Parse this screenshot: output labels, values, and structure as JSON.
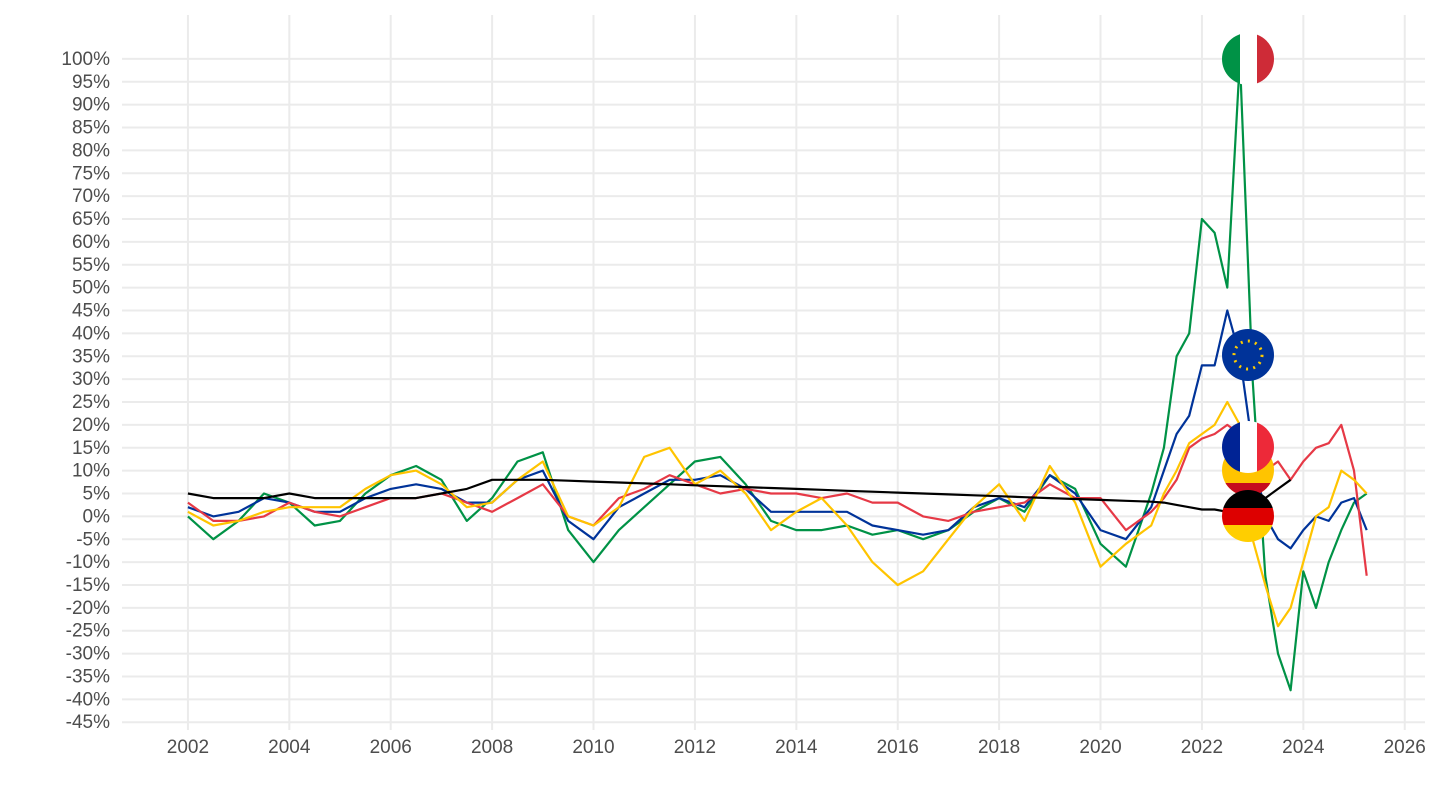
{
  "chart_data": {
    "type": "line",
    "x": [
      2002,
      2002.5,
      2003,
      2003.5,
      2004,
      2004.5,
      2005,
      2005.5,
      2006,
      2006.5,
      2007,
      2007.5,
      2008,
      2008.5,
      2009,
      2009.5,
      2010,
      2010.5,
      2011,
      2011.5,
      2012,
      2012.5,
      2013,
      2013.5,
      2014,
      2014.5,
      2015,
      2015.5,
      2016,
      2016.5,
      2017,
      2017.5,
      2018,
      2018.5,
      2019,
      2019.5,
      2020,
      2020.5,
      2021,
      2021.25,
      2021.5,
      2021.75,
      2022,
      2022.25,
      2022.5,
      2022.75,
      2023,
      2023.25,
      2023.5,
      2023.75,
      2024,
      2024.25,
      2024.5,
      2024.75,
      2025,
      2025.25
    ],
    "series": [
      {
        "color": "#009246",
        "values": [
          0,
          -5,
          -1,
          5,
          3,
          -2,
          -1,
          5,
          9,
          11,
          8,
          -1,
          4,
          12,
          14,
          -3,
          -10,
          -3,
          2,
          7,
          12,
          13,
          7,
          -1,
          -3,
          -3,
          -2,
          -4,
          -3,
          -5,
          -3,
          1,
          4,
          1,
          9,
          6,
          -6,
          -11,
          5,
          15,
          35,
          40,
          65,
          62,
          50,
          100,
          30,
          -13,
          -30,
          -38,
          -12,
          -20,
          -10,
          -3,
          3,
          5
        ]
      },
      {
        "color": "#003399",
        "values": [
          2,
          0,
          1,
          4,
          3,
          1,
          1,
          4,
          6,
          7,
          6,
          3,
          3,
          8,
          10,
          -1,
          -5,
          2,
          5,
          8,
          8,
          9,
          6,
          1,
          1,
          1,
          1,
          -2,
          -3,
          -4,
          -3,
          2,
          4,
          2,
          9,
          5,
          -3,
          -5,
          2,
          10,
          18,
          22,
          33,
          33,
          45,
          35,
          15,
          0,
          -5,
          -7,
          -3,
          0,
          -1,
          3,
          4,
          -3
        ]
      },
      {
        "color": "#e63946",
        "values": [
          3,
          -1,
          -1,
          0,
          3,
          1,
          0,
          2,
          4,
          4,
          5,
          3,
          1,
          4,
          7,
          0,
          -2,
          4,
          6,
          9,
          7,
          5,
          6,
          5,
          5,
          4,
          5,
          3,
          3,
          0,
          -1,
          1,
          2,
          3,
          7,
          4,
          4,
          -3,
          1,
          4,
          8,
          15,
          17,
          18,
          20,
          18,
          15,
          10,
          12,
          8,
          12,
          15,
          16,
          20,
          10,
          -13
        ]
      },
      {
        "color": "#ffc400",
        "values": [
          1,
          -2,
          -1,
          1,
          2,
          2,
          2,
          6,
          9,
          10,
          7,
          2,
          3,
          8,
          12,
          0,
          -2,
          2,
          13,
          15,
          7,
          10,
          5,
          -3,
          1,
          4,
          -2,
          -10,
          -15,
          -12,
          -5,
          2,
          7,
          -1,
          11,
          3,
          -11,
          -6,
          -2,
          5,
          10,
          16,
          18,
          20,
          25,
          20,
          -5,
          -15,
          -24,
          -20,
          -10,
          0,
          2,
          10,
          8,
          5
        ]
      },
      {
        "color": "#000000",
        "values": [
          5,
          4,
          4,
          4,
          5,
          4,
          4,
          4,
          4,
          4,
          5,
          6,
          8,
          8,
          8,
          7.8,
          7.6,
          7.4,
          7.2,
          7,
          6.8,
          6.6,
          6.4,
          6.2,
          6,
          5.8,
          5.6,
          5.4,
          5.2,
          5,
          4.8,
          4.6,
          4.4,
          4.2,
          4,
          3.8,
          3.6,
          3.4,
          3.2,
          3,
          2.5,
          2,
          1.5,
          1.5,
          1,
          0.5,
          2,
          4,
          6,
          8,
          null,
          null,
          null,
          null,
          null,
          null
        ]
      }
    ],
    "xlim": [
      2000.7,
      2026.4
    ],
    "xticks": [
      2002,
      2004,
      2006,
      2008,
      2010,
      2012,
      2014,
      2016,
      2018,
      2020,
      2022,
      2024,
      2026
    ],
    "ylim": [
      -46.7,
      109.6
    ],
    "yticks": [
      {
        "value": -45,
        "label": "-45%"
      },
      {
        "value": -40,
        "label": "-40%"
      },
      {
        "value": -35,
        "label": "-35%"
      },
      {
        "value": -30,
        "label": "-30%"
      },
      {
        "value": -25,
        "label": "-25%"
      },
      {
        "value": -20,
        "label": "-20%"
      },
      {
        "value": -15,
        "label": "-15%"
      },
      {
        "value": -10,
        "label": "-10%"
      },
      {
        "value": -5,
        "label": "-5%"
      },
      {
        "value": 0,
        "label": "0%"
      },
      {
        "value": 5,
        "label": "5%"
      },
      {
        "value": 10,
        "label": "10%"
      },
      {
        "value": 15,
        "label": "15%"
      },
      {
        "value": 20,
        "label": "20%"
      },
      {
        "value": 25,
        "label": "25%"
      },
      {
        "value": 30,
        "label": "30%"
      },
      {
        "value": 35,
        "label": "35%"
      },
      {
        "value": 40,
        "label": "40%"
      },
      {
        "value": 45,
        "label": "45%"
      },
      {
        "value": 50,
        "label": "50%"
      },
      {
        "value": 55,
        "label": "55%"
      },
      {
        "value": 60,
        "label": "60%"
      },
      {
        "value": 65,
        "label": "65%"
      },
      {
        "value": 70,
        "label": "70%"
      },
      {
        "value": 75,
        "label": "75%"
      },
      {
        "value": 80,
        "label": "80%"
      },
      {
        "value": 85,
        "label": "85%"
      },
      {
        "value": 90,
        "label": "90%"
      },
      {
        "value": 95,
        "label": "95%"
      },
      {
        "value": 100,
        "label": "100%"
      }
    ],
    "grid": true
  }
}
